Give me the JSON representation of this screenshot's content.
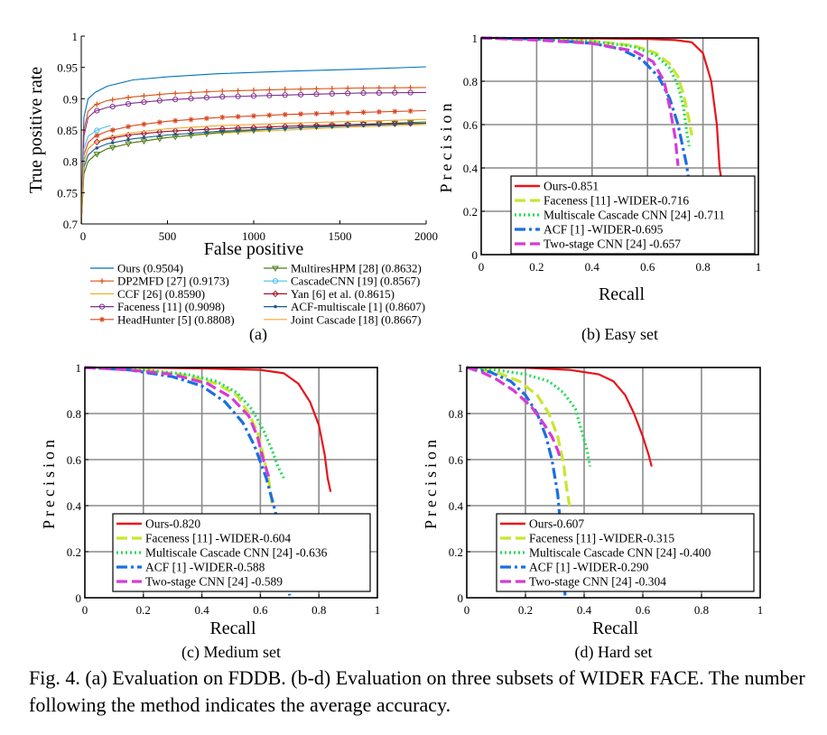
{
  "figure": {
    "caption": "Fig. 4.  (a) Evaluation on FDDB. (b-d) Evaluation on three subsets of WIDER FACE. The number following the method indicates the average accuracy."
  },
  "chart_data": [
    {
      "id": "a",
      "type": "line",
      "label": "(a)",
      "xlabel": "False positive",
      "ylabel": "True positive rate",
      "xlim": [
        0,
        2000
      ],
      "ylim": [
        0.7,
        1.0
      ],
      "xticks": [
        0,
        500,
        1000,
        1500,
        2000
      ],
      "yticks": [
        0.7,
        0.75,
        0.8,
        0.85,
        0.9,
        0.95,
        1
      ],
      "grid": false,
      "legend_position": "below",
      "series": [
        {
          "name": "Ours (0.9504)",
          "color": "#0072bd",
          "marker": "none",
          "x": [
            0,
            15,
            40,
            80,
            150,
            300,
            500,
            800,
            1200,
            1600,
            2000
          ],
          "y": [
            0.7,
            0.87,
            0.9,
            0.91,
            0.92,
            0.93,
            0.935,
            0.94,
            0.944,
            0.947,
            0.951
          ]
        },
        {
          "name": "DP2MFD [27] (0.9173)",
          "color": "#d95319",
          "marker": "plus",
          "x": [
            0,
            15,
            40,
            80,
            150,
            300,
            500,
            800,
            1200,
            1600,
            2000
          ],
          "y": [
            0.7,
            0.85,
            0.88,
            0.89,
            0.897,
            0.903,
            0.908,
            0.912,
            0.915,
            0.917,
            0.918
          ]
        },
        {
          "name": "CCF [26] (0.8590)",
          "color": "#edb120",
          "marker": "none",
          "x": [
            0,
            15,
            40,
            80,
            150,
            300,
            500,
            800,
            1200,
            1600,
            2000
          ],
          "y": [
            0.7,
            0.78,
            0.8,
            0.81,
            0.82,
            0.83,
            0.838,
            0.845,
            0.85,
            0.855,
            0.859
          ]
        },
        {
          "name": "Faceness [11] (0.9098)",
          "color": "#7e2f8e",
          "marker": "circle",
          "x": [
            0,
            15,
            40,
            80,
            150,
            300,
            500,
            800,
            1200,
            1600,
            2000
          ],
          "y": [
            0.7,
            0.84,
            0.87,
            0.88,
            0.886,
            0.893,
            0.898,
            0.903,
            0.906,
            0.909,
            0.91
          ]
        },
        {
          "name": "HeadHunter [5] (0.8808)",
          "color": "#d9461e",
          "marker": "star",
          "x": [
            0,
            15,
            40,
            80,
            150,
            300,
            500,
            800,
            1200,
            1600,
            2000
          ],
          "y": [
            0.7,
            0.81,
            0.83,
            0.84,
            0.848,
            0.857,
            0.864,
            0.87,
            0.875,
            0.878,
            0.881
          ]
        },
        {
          "name": "MultiresHPM [28] (0.8632)",
          "color": "#4e7e1c",
          "marker": "triangle",
          "x": [
            0,
            15,
            40,
            80,
            150,
            300,
            500,
            800,
            1200,
            1600,
            2000
          ],
          "y": [
            0.7,
            0.78,
            0.8,
            0.81,
            0.82,
            0.83,
            0.838,
            0.846,
            0.853,
            0.859,
            0.863
          ]
        },
        {
          "name": "CascadeCNN [19] (0.8567)",
          "color": "#4dbeee",
          "marker": "circle",
          "x": [
            0,
            15,
            40,
            80,
            120,
            170
          ],
          "y": [
            0.7,
            0.82,
            0.84,
            0.848,
            0.853,
            0.857
          ]
        },
        {
          "name": "Yan [6] et al. (0.8615)",
          "color": "#a2142f",
          "marker": "diamond",
          "x": [
            0,
            15,
            40,
            80,
            150,
            300,
            500,
            800,
            1200,
            1600,
            2000
          ],
          "y": [
            0.7,
            0.8,
            0.82,
            0.83,
            0.836,
            0.843,
            0.848,
            0.852,
            0.856,
            0.859,
            0.861
          ]
        },
        {
          "name": "ACF-multiscale [1] (0.8607)",
          "color": "#1f5a8c",
          "marker": "dot",
          "x": [
            0,
            15,
            40,
            80,
            150,
            300,
            500,
            800,
            1200,
            1600,
            2000
          ],
          "y": [
            0.7,
            0.79,
            0.81,
            0.82,
            0.828,
            0.836,
            0.842,
            0.848,
            0.853,
            0.857,
            0.861
          ]
        },
        {
          "name": "Joint Cascade [18] (0.8667)",
          "color": "#f0a830",
          "marker": "none",
          "x": [
            0,
            15,
            40,
            80,
            150,
            300,
            500,
            800,
            1200,
            1600,
            2000
          ],
          "y": [
            0.7,
            0.8,
            0.82,
            0.83,
            0.838,
            0.846,
            0.852,
            0.857,
            0.861,
            0.864,
            0.867
          ]
        }
      ]
    },
    {
      "id": "b",
      "type": "line",
      "label": "(b) Easy set",
      "xlabel": "Recall",
      "ylabel": "Precision",
      "xlim": [
        0,
        1
      ],
      "ylim": [
        0,
        1
      ],
      "xticks": [
        0,
        0.2,
        0.4,
        0.6,
        0.8,
        1
      ],
      "yticks": [
        0,
        0.2,
        0.4,
        0.6,
        0.8,
        1
      ],
      "grid": true,
      "legend_position": "bottom-right",
      "series": [
        {
          "name": "Ours-0.851",
          "color": "#e8141c",
          "style": "solid",
          "x": [
            0,
            0.2,
            0.4,
            0.6,
            0.7,
            0.76,
            0.8,
            0.83,
            0.85,
            0.86,
            0.866
          ],
          "y": [
            1,
            0.999,
            0.998,
            0.995,
            0.99,
            0.98,
            0.93,
            0.8,
            0.6,
            0.4,
            0.35
          ]
        },
        {
          "name": "Faceness [11] -WIDER-0.716",
          "color": "#c8e632",
          "style": "dash",
          "x": [
            0,
            0.2,
            0.4,
            0.55,
            0.63,
            0.68,
            0.71,
            0.73,
            0.75,
            0.76
          ],
          "y": [
            1,
            0.995,
            0.985,
            0.965,
            0.93,
            0.88,
            0.82,
            0.74,
            0.62,
            0.55
          ]
        },
        {
          "name": "Multiscale Cascade CNN [24] -0.711",
          "color": "#22dd55",
          "style": "dot",
          "x": [
            0,
            0.2,
            0.4,
            0.55,
            0.63,
            0.68,
            0.71,
            0.73,
            0.74,
            0.75
          ],
          "y": [
            1,
            0.995,
            0.985,
            0.96,
            0.92,
            0.86,
            0.78,
            0.68,
            0.58,
            0.5
          ]
        },
        {
          "name": "ACF [1] -WIDER-0.695",
          "color": "#1a6fe0",
          "style": "dashdot",
          "x": [
            0,
            0.2,
            0.4,
            0.5,
            0.58,
            0.64,
            0.68,
            0.71,
            0.74,
            0.76,
            0.78
          ],
          "y": [
            1,
            0.995,
            0.975,
            0.95,
            0.9,
            0.82,
            0.72,
            0.6,
            0.42,
            0.25,
            0.03
          ]
        },
        {
          "name": "Two-stage CNN [24] -0.657",
          "color": "#d63ad6",
          "style": "dash",
          "x": [
            0,
            0.2,
            0.4,
            0.55,
            0.62,
            0.66,
            0.68,
            0.7,
            0.71
          ],
          "y": [
            1,
            0.99,
            0.975,
            0.94,
            0.89,
            0.8,
            0.68,
            0.54,
            0.41
          ]
        }
      ]
    },
    {
      "id": "c",
      "type": "line",
      "label": "(c) Medium set",
      "xlabel": "Recall",
      "ylabel": "Precision",
      "xlim": [
        0,
        1
      ],
      "ylim": [
        0,
        1
      ],
      "xticks": [
        0,
        0.2,
        0.4,
        0.6,
        0.8,
        1
      ],
      "yticks": [
        0,
        0.2,
        0.4,
        0.6,
        0.8,
        1
      ],
      "grid": true,
      "legend_position": "bottom-left",
      "series": [
        {
          "name": "Ours-0.820",
          "color": "#e8141c",
          "style": "solid",
          "x": [
            0,
            0.2,
            0.4,
            0.6,
            0.68,
            0.73,
            0.77,
            0.8,
            0.82,
            0.83,
            0.84
          ],
          "y": [
            1,
            0.999,
            0.996,
            0.99,
            0.975,
            0.93,
            0.85,
            0.75,
            0.62,
            0.52,
            0.46
          ]
        },
        {
          "name": "Faceness [11] -WIDER-0.604",
          "color": "#c8e632",
          "style": "dash",
          "x": [
            0,
            0.2,
            0.35,
            0.45,
            0.52,
            0.56,
            0.59,
            0.61,
            0.63,
            0.64
          ],
          "y": [
            1,
            0.99,
            0.965,
            0.93,
            0.88,
            0.8,
            0.72,
            0.62,
            0.5,
            0.41
          ]
        },
        {
          "name": "Multiscale Cascade CNN [24] -0.636",
          "color": "#22dd55",
          "style": "dot",
          "x": [
            0,
            0.2,
            0.35,
            0.45,
            0.52,
            0.57,
            0.61,
            0.64,
            0.66,
            0.68
          ],
          "y": [
            1,
            0.99,
            0.97,
            0.94,
            0.89,
            0.82,
            0.73,
            0.64,
            0.57,
            0.52
          ]
        },
        {
          "name": "ACF [1] -WIDER-0.588",
          "color": "#1a6fe0",
          "style": "dashdot",
          "x": [
            0,
            0.15,
            0.3,
            0.4,
            0.48,
            0.54,
            0.58,
            0.62,
            0.65,
            0.68,
            0.7
          ],
          "y": [
            1,
            0.99,
            0.96,
            0.92,
            0.85,
            0.76,
            0.66,
            0.52,
            0.38,
            0.2,
            0.01
          ]
        },
        {
          "name": "Two-stage CNN [24] -0.589",
          "color": "#d63ad6",
          "style": "dash",
          "x": [
            0,
            0.15,
            0.3,
            0.42,
            0.5,
            0.56,
            0.59,
            0.61,
            0.63
          ],
          "y": [
            1,
            0.99,
            0.97,
            0.93,
            0.87,
            0.79,
            0.7,
            0.6,
            0.52
          ]
        }
      ]
    },
    {
      "id": "d",
      "type": "line",
      "label": "(d) Hard set",
      "xlabel": "Recall",
      "ylabel": "Precision",
      "xlim": [
        0,
        1
      ],
      "ylim": [
        0,
        1
      ],
      "xticks": [
        0,
        0.2,
        0.4,
        0.6,
        0.8,
        1
      ],
      "yticks": [
        0,
        0.2,
        0.4,
        0.6,
        0.8,
        1
      ],
      "grid": true,
      "legend_position": "bottom-left",
      "series": [
        {
          "name": "Ours-0.607",
          "color": "#e8141c",
          "style": "solid",
          "x": [
            0,
            0.2,
            0.35,
            0.45,
            0.5,
            0.54,
            0.57,
            0.6,
            0.62,
            0.63
          ],
          "y": [
            1,
            0.999,
            0.99,
            0.97,
            0.94,
            0.88,
            0.8,
            0.7,
            0.62,
            0.57
          ]
        },
        {
          "name": "Faceness [11] -WIDER-0.315",
          "color": "#c8e632",
          "style": "dash",
          "x": [
            0,
            0.1,
            0.18,
            0.24,
            0.28,
            0.31,
            0.33,
            0.34,
            0.35
          ],
          "y": [
            1,
            0.98,
            0.94,
            0.88,
            0.8,
            0.7,
            0.58,
            0.48,
            0.4
          ]
        },
        {
          "name": "Multiscale Cascade CNN [24] -0.400",
          "color": "#22dd55",
          "style": "dot",
          "x": [
            0,
            0.1,
            0.2,
            0.28,
            0.33,
            0.37,
            0.39,
            0.41,
            0.42
          ],
          "y": [
            1,
            0.99,
            0.97,
            0.94,
            0.89,
            0.82,
            0.73,
            0.64,
            0.57
          ]
        },
        {
          "name": "ACF [1] -WIDER-0.290",
          "color": "#1a6fe0",
          "style": "dashdot",
          "x": [
            0,
            0.08,
            0.15,
            0.2,
            0.24,
            0.27,
            0.29,
            0.31,
            0.32,
            0.33,
            0.335
          ],
          "y": [
            1,
            0.98,
            0.94,
            0.88,
            0.8,
            0.7,
            0.6,
            0.45,
            0.3,
            0.15,
            0.01
          ]
        },
        {
          "name": "Two-stage CNN [24] -0.304",
          "color": "#d63ad6",
          "style": "dash",
          "x": [
            0,
            0.05,
            0.1,
            0.16,
            0.22,
            0.26,
            0.29,
            0.31,
            0.32
          ],
          "y": [
            1,
            0.98,
            0.95,
            0.9,
            0.83,
            0.76,
            0.7,
            0.64,
            0.6
          ]
        }
      ]
    }
  ]
}
